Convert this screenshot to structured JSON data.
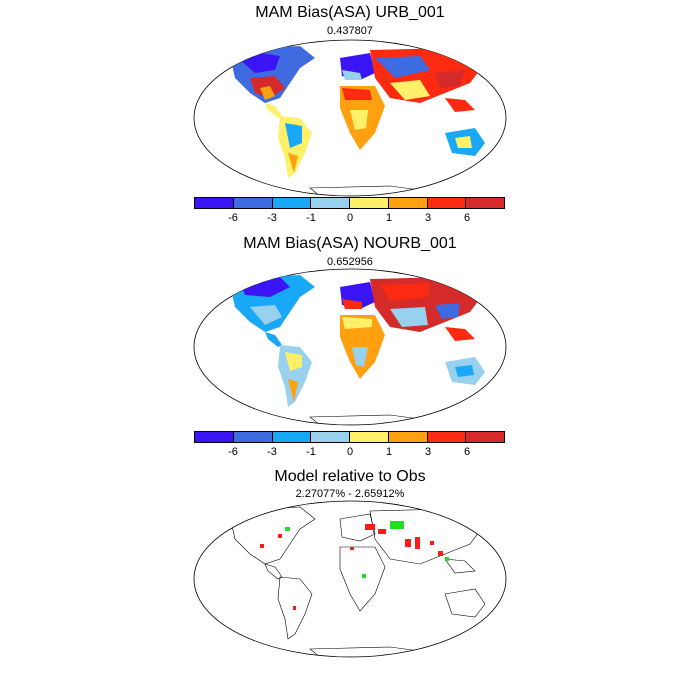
{
  "panels": [
    {
      "title": "MAM Bias(ASA) URB_001",
      "subtitle": "0.437807"
    },
    {
      "title": "MAM Bias(ASA) NOURB_001",
      "subtitle": "0.652956"
    },
    {
      "title": "Model relative to Obs",
      "subtitle": "2.27077% - 2.65912%"
    }
  ],
  "colorbar": {
    "colors": [
      "#3a14f5",
      "#3f6be0",
      "#18a8f5",
      "#98d1ee",
      "#fff06a",
      "#ffa010",
      "#fc2a10",
      "#d42a2a"
    ],
    "ticks": [
      "-6",
      "-3",
      "-1",
      "0",
      "1",
      "3",
      "6"
    ]
  },
  "legend_colors": {
    "positive": "#ff1a1a",
    "negative": "#22dd22"
  }
}
